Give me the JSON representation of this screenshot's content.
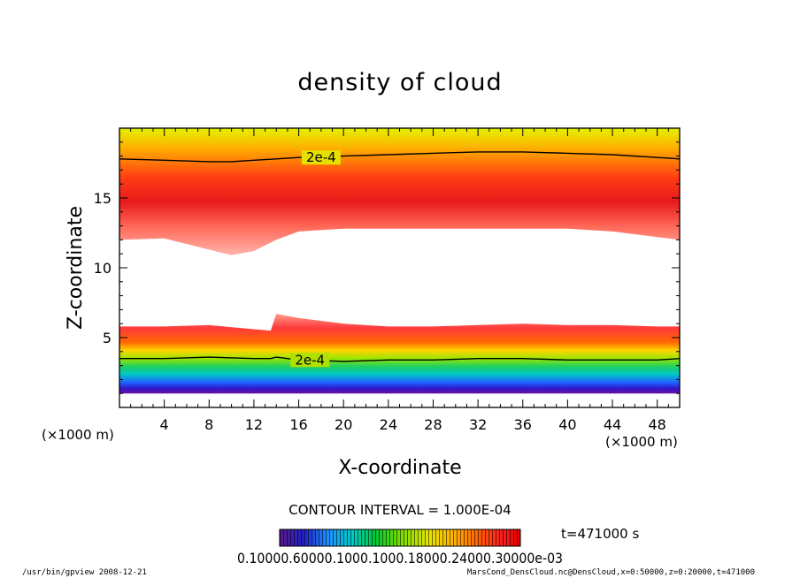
{
  "chart_data": {
    "type": "heatmap",
    "title": "density of cloud",
    "xlabel": "X-coordinate",
    "ylabel": "Z-coordinate",
    "x_unit": "(×1000 m)",
    "y_unit": "(×1000 m)",
    "xlim": [
      0,
      50
    ],
    "ylim": [
      0,
      20
    ],
    "x_ticks": [
      "4",
      "8",
      "12",
      "16",
      "20",
      "24",
      "28",
      "32",
      "36",
      "40",
      "44",
      "48"
    ],
    "y_ticks": [
      "5",
      "10",
      "15"
    ],
    "contour_interval": "CONTOUR INTERVAL = 1.000E-04",
    "contour_label": "2e-4",
    "time_label": "t=471000 s",
    "colorbar_tick_text": "0.10000.60000.1000.1000.18000.24000.30000e-03",
    "colorbar_colors": [
      "#5a1a8c",
      "#2020c8",
      "#1e90ff",
      "#00c8c8",
      "#00c832",
      "#78dc00",
      "#e6e600",
      "#ffb400",
      "#ff6400",
      "#ff1e1e",
      "#e60000"
    ],
    "field_bands": {
      "upper_cloud": {
        "x": [
          0,
          4,
          8,
          10,
          12,
          14,
          16,
          20,
          24,
          28,
          32,
          36,
          40,
          44,
          48,
          50
        ],
        "base_z": [
          12.0,
          12.1,
          11.3,
          10.9,
          11.2,
          12.0,
          12.6,
          12.8,
          12.8,
          12.8,
          12.8,
          12.8,
          12.8,
          12.6,
          12.2,
          12.0
        ],
        "contour_2e-4_z": [
          17.8,
          17.7,
          17.6,
          17.6,
          17.7,
          17.8,
          17.9,
          18.0,
          18.1,
          18.2,
          18.3,
          18.3,
          18.2,
          18.1,
          17.9,
          17.8
        ]
      },
      "lower_cloud": {
        "x": [
          0,
          4,
          8,
          12,
          13.5,
          14,
          16,
          20,
          24,
          28,
          32,
          36,
          40,
          44,
          48,
          50
        ],
        "top_z": [
          5.8,
          5.8,
          5.9,
          5.6,
          5.5,
          6.7,
          6.4,
          6.0,
          5.8,
          5.8,
          5.9,
          6.0,
          5.9,
          5.9,
          5.8,
          5.8
        ],
        "contour_2e-4_z": [
          3.5,
          3.5,
          3.6,
          3.5,
          3.5,
          3.6,
          3.4,
          3.3,
          3.4,
          3.4,
          3.5,
          3.5,
          3.4,
          3.4,
          3.4,
          3.5
        ],
        "base_z": [
          1.0,
          1.0,
          1.0,
          1.0,
          1.0,
          1.0,
          1.0,
          1.0,
          1.0,
          1.0,
          1.0,
          1.0,
          1.0,
          1.0,
          1.0,
          1.0
        ]
      }
    }
  },
  "footer": {
    "left": "/usr/bin/gpview   2008-12-21",
    "right": "MarsCond_DensCloud.nc@DensCloud,x=0:50000,z=0:20000,t=471000"
  }
}
